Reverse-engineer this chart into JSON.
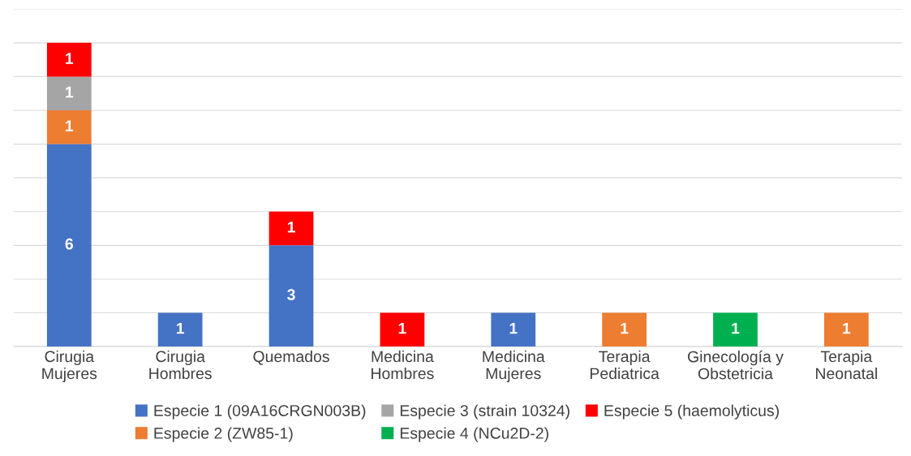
{
  "chart_data": {
    "type": "bar",
    "stacked": true,
    "data_labels": true,
    "grid": "y",
    "legend": "bottom",
    "tick_labels": "x",
    "categories": [
      "Cirugia\nMujeres",
      "Cirugia\nHombres",
      "Quemados",
      "Medicina\nHombres",
      "Medicina\nMujeres",
      "Terapia\nPediatrica",
      "Ginecología y\nObstetricia",
      "Terapia\nNeonatal"
    ],
    "ylim": [
      0,
      10
    ],
    "yticks": [
      0,
      1,
      2,
      3,
      4,
      5,
      6,
      7,
      8,
      9,
      10
    ],
    "series": [
      {
        "name": "Especie 1 (09A16CRGN003B)",
        "color": "#4472c4",
        "values": [
          6,
          1,
          3,
          null,
          1,
          null,
          null,
          null
        ]
      },
      {
        "name": "Especie 2 (ZW85-1)",
        "color": "#ed7d31",
        "values": [
          1,
          null,
          null,
          null,
          null,
          1,
          null,
          1
        ]
      },
      {
        "name": "Especie 3 (strain 10324)",
        "color": "#a5a5a5",
        "values": [
          1,
          null,
          null,
          null,
          null,
          null,
          null,
          null
        ]
      },
      {
        "name": "Especie 4 (NCu2D-2)",
        "color": "#00b050",
        "values": [
          null,
          null,
          null,
          null,
          null,
          null,
          1,
          null
        ]
      },
      {
        "name": "Especie 5 (haemolyticus)",
        "color": "#ff0000",
        "values": [
          1,
          null,
          1,
          1,
          null,
          null,
          null,
          null
        ]
      }
    ]
  }
}
